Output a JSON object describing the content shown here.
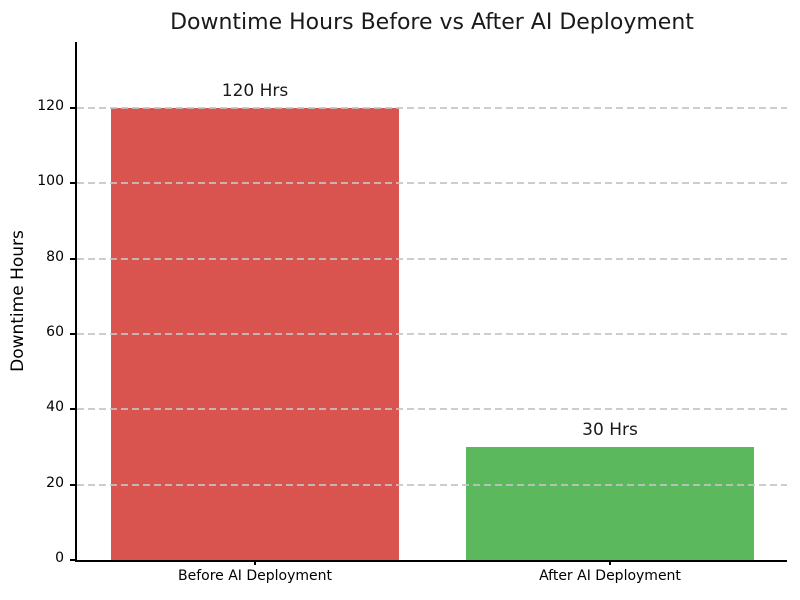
{
  "figure": {
    "background": "#ffffff",
    "text_color": "#000000",
    "title_color": "#1a1a1a"
  },
  "chart_data": {
    "type": "bar",
    "title": "Downtime Hours Before vs After AI Deployment",
    "categories": [
      "Before AI Deployment",
      "After AI Deployment"
    ],
    "values": [
      120,
      30
    ],
    "bar_value_labels": [
      "120 Hrs",
      "30 Hrs"
    ],
    "bar_colors": [
      "#d9534f",
      "#5cb85c"
    ],
    "xlabel": "",
    "ylabel": "Downtime Hours",
    "yticks": [
      0,
      20,
      40,
      60,
      80,
      100,
      120
    ],
    "ylim": [
      0,
      137.5
    ],
    "grid": {
      "axis": "y",
      "style": "dashed",
      "color": "#c4c4c4",
      "above_bars": true
    },
    "legend": "none"
  }
}
